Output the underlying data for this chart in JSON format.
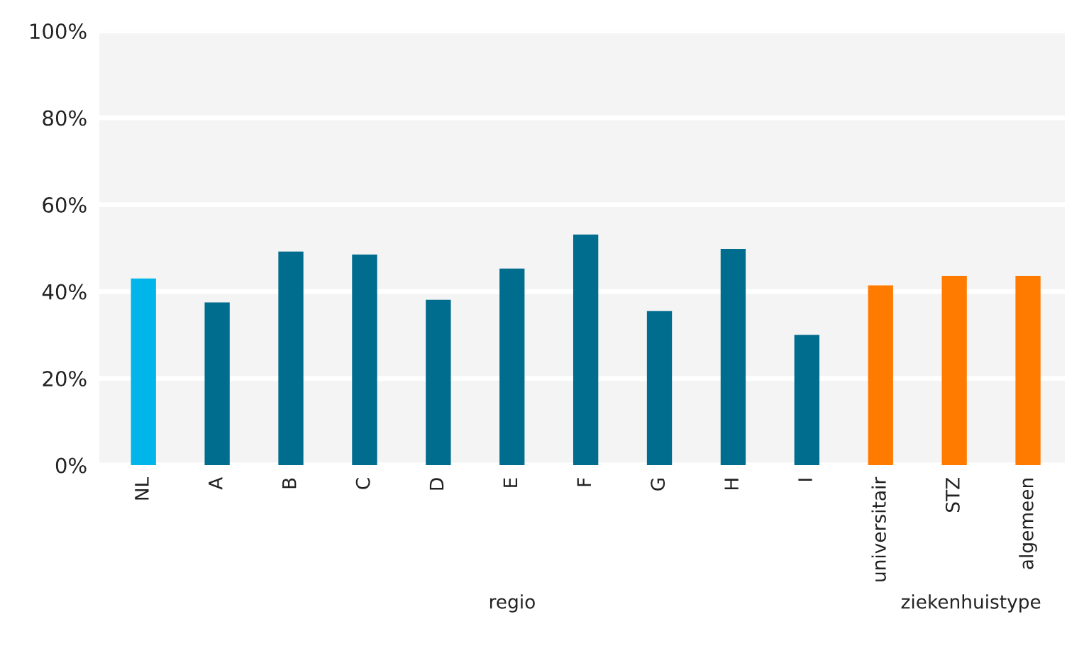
{
  "chart_data": {
    "type": "bar",
    "categories": [
      "NL",
      "A",
      "B",
      "C",
      "D",
      "E",
      "F",
      "G",
      "H",
      "I",
      "universitair",
      "STZ",
      "algemeen"
    ],
    "values": [
      43.0,
      37.5,
      49.2,
      48.5,
      38.1,
      45.3,
      53.1,
      35.5,
      49.8,
      30.0,
      41.4,
      43.6,
      43.6
    ],
    "colors": [
      "#00b5e9",
      "#006c8e",
      "#006c8e",
      "#006c8e",
      "#006c8e",
      "#006c8e",
      "#006c8e",
      "#006c8e",
      "#006c8e",
      "#006c8e",
      "#ff7b00",
      "#ff7b00",
      "#ff7b00"
    ],
    "ylim": [
      0,
      100
    ],
    "yticks": [
      {
        "value": 0,
        "label": "0%"
      },
      {
        "value": 20,
        "label": "20%"
      },
      {
        "value": 40,
        "label": "40%"
      },
      {
        "value": 60,
        "label": "60%"
      },
      {
        "value": 80,
        "label": "80%"
      },
      {
        "value": 100,
        "label": "100%"
      }
    ],
    "grid": "y",
    "annotations": [
      "regio",
      "ziekenhuistype"
    ]
  }
}
